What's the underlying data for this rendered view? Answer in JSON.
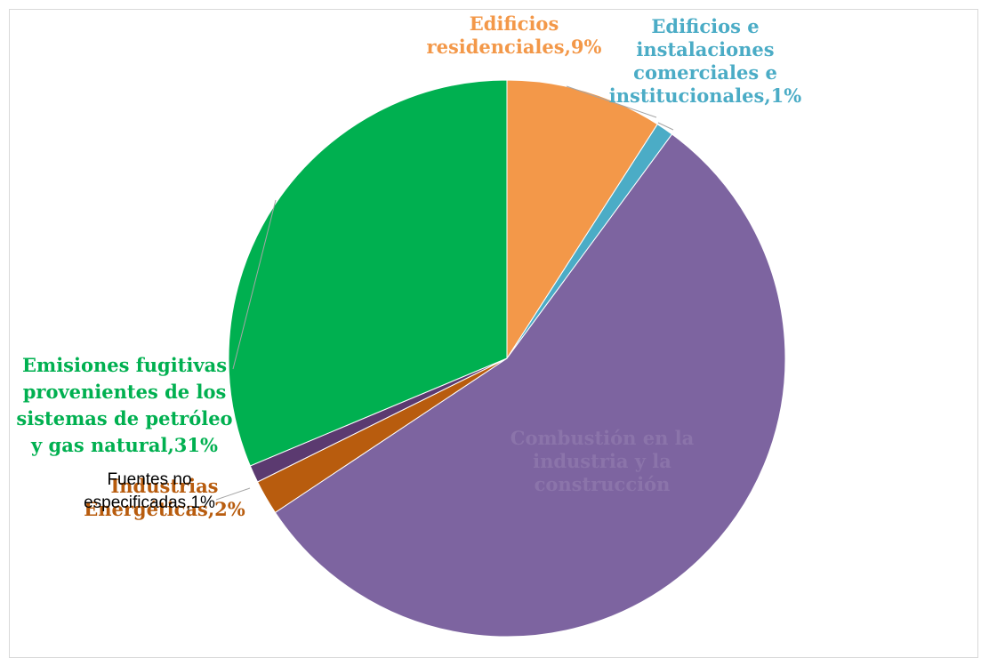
{
  "chart_data": {
    "type": "pie",
    "title": "",
    "slices": [
      {
        "label": "Edificios residenciales",
        "value": 9,
        "pct_text": "9%",
        "color": "#F39849",
        "label_lines": [
          "Edificios",
          "residenciales,9%"
        ]
      },
      {
        "label": "Edificios e instalaciones comerciales e institucionales",
        "value": 1,
        "pct_text": "1%",
        "color": "#4BACC6",
        "label_lines": [
          "Edificios e",
          "instalaciones",
          "comerciales e",
          "institucionales,1%"
        ]
      },
      {
        "label": "Combustión en la industria",
        "value": 55,
        "pct_text": "",
        "color": "#7D64A0",
        "label_lines": [
          "Combustión en la",
          "industria y la",
          "construcción"
        ]
      },
      {
        "label": "Industrias Energéticas",
        "value": 2,
        "pct_text": "2%",
        "color": "#B85C0E",
        "label_lines": [
          "Industrias",
          "Energéticas,2%"
        ]
      },
      {
        "label": "Fuentes no especificadas",
        "value": 1,
        "pct_text": "1%",
        "color": "#5B3A70",
        "label_lines": [
          "Fuentes no",
          "especificadas,1%"
        ]
      },
      {
        "label": "Emisiones fugitivas provenientes de los sistemas de petróleo y gas natural",
        "value": 31,
        "pct_text": "31%",
        "color": "#00B050",
        "label_lines": [
          "Emisiones fugitivas",
          "provenientes de los",
          "sistemas de petróleo",
          "y gas natural,31%"
        ]
      }
    ],
    "legend": "none"
  }
}
